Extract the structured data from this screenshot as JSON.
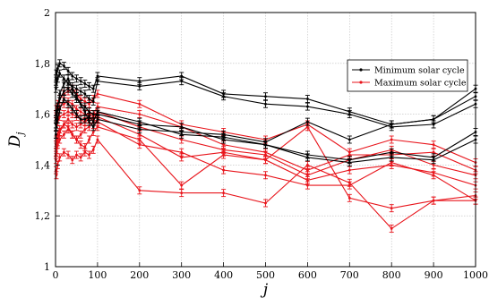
{
  "chart_data": {
    "type": "line",
    "xlabel": "j",
    "ylabel": "D",
    "ylabel_subscript": "j",
    "xlim": [
      0,
      1000
    ],
    "ylim": [
      1,
      2
    ],
    "x_ticks": [
      0,
      100,
      200,
      300,
      400,
      500,
      600,
      700,
      800,
      900,
      1000
    ],
    "y_ticks": [
      {
        "value": 1,
        "label": "1"
      },
      {
        "value": 1.2,
        "label": "1,2"
      },
      {
        "value": 1.4,
        "label": "1,4"
      },
      {
        "value": 1.6,
        "label": "1,6"
      },
      {
        "value": 1.8,
        "label": "1,8"
      },
      {
        "value": 2,
        "label": "2"
      }
    ],
    "legend_position": "top-right",
    "legend": [
      {
        "label": "Minimum solar cycle",
        "color": "#000000"
      },
      {
        "label": "Maximum solar cycle",
        "color": "#e8141b"
      }
    ],
    "x": [
      1,
      2,
      5,
      10,
      20,
      30,
      40,
      50,
      60,
      70,
      80,
      90,
      100,
      200,
      300,
      400,
      500,
      600,
      700,
      800,
      900,
      1000
    ],
    "series": [
      {
        "group": "Minimum solar cycle",
        "color": "#000000",
        "values": [
          1.74,
          1.76,
          1.78,
          1.8,
          1.79,
          1.77,
          1.75,
          1.74,
          1.73,
          1.72,
          1.71,
          1.7,
          1.75,
          1.73,
          1.75,
          1.68,
          1.67,
          1.66,
          1.61,
          1.56,
          1.58,
          1.67
        ]
      },
      {
        "group": "Minimum solar cycle",
        "color": "#000000",
        "values": [
          1.7,
          1.72,
          1.74,
          1.76,
          1.74,
          1.72,
          1.71,
          1.7,
          1.69,
          1.68,
          1.66,
          1.65,
          1.73,
          1.71,
          1.73,
          1.67,
          1.64,
          1.63,
          1.6,
          1.55,
          1.56,
          1.64
        ]
      },
      {
        "group": "Minimum solar cycle",
        "color": "#000000",
        "values": [
          1.56,
          1.58,
          1.62,
          1.68,
          1.72,
          1.74,
          1.7,
          1.67,
          1.64,
          1.61,
          1.57,
          1.55,
          1.58,
          1.54,
          1.53,
          1.52,
          1.49,
          1.57,
          1.5,
          1.56,
          1.58,
          1.7
        ]
      },
      {
        "group": "Minimum solar cycle",
        "color": "#000000",
        "values": [
          1.52,
          1.55,
          1.58,
          1.62,
          1.66,
          1.64,
          1.62,
          1.6,
          1.58,
          1.58,
          1.59,
          1.57,
          1.61,
          1.57,
          1.52,
          1.51,
          1.48,
          1.44,
          1.42,
          1.45,
          1.43,
          1.53
        ]
      },
      {
        "group": "Minimum solar cycle",
        "color": "#000000",
        "values": [
          1.58,
          1.6,
          1.63,
          1.66,
          1.69,
          1.7,
          1.68,
          1.66,
          1.64,
          1.63,
          1.61,
          1.6,
          1.6,
          1.56,
          1.55,
          1.5,
          1.48,
          1.43,
          1.41,
          1.43,
          1.42,
          1.5
        ]
      },
      {
        "group": "Maximum solar cycle",
        "color": "#e8141b",
        "values": [
          1.6,
          1.62,
          1.64,
          1.66,
          1.68,
          1.69,
          1.7,
          1.68,
          1.66,
          1.65,
          1.64,
          1.66,
          1.68,
          1.64,
          1.56,
          1.53,
          1.5,
          1.56,
          1.45,
          1.5,
          1.48,
          1.41
        ]
      },
      {
        "group": "Maximum solar cycle",
        "color": "#e8141b",
        "values": [
          1.58,
          1.6,
          1.62,
          1.63,
          1.64,
          1.65,
          1.64,
          1.62,
          1.61,
          1.6,
          1.6,
          1.6,
          1.63,
          1.6,
          1.55,
          1.48,
          1.45,
          1.38,
          1.44,
          1.44,
          1.45,
          1.38
        ]
      },
      {
        "group": "Maximum solar cycle",
        "color": "#e8141b",
        "values": [
          1.52,
          1.55,
          1.57,
          1.59,
          1.6,
          1.61,
          1.6,
          1.59,
          1.58,
          1.57,
          1.58,
          1.59,
          1.61,
          1.55,
          1.5,
          1.46,
          1.44,
          1.36,
          1.42,
          1.46,
          1.4,
          1.36
        ]
      },
      {
        "group": "Maximum solar cycle",
        "color": "#e8141b",
        "values": [
          1.48,
          1.5,
          1.52,
          1.54,
          1.56,
          1.58,
          1.56,
          1.55,
          1.56,
          1.57,
          1.59,
          1.58,
          1.59,
          1.52,
          1.43,
          1.45,
          1.42,
          1.34,
          1.38,
          1.4,
          1.37,
          1.32
        ]
      },
      {
        "group": "Maximum solar cycle",
        "color": "#e8141b",
        "values": [
          1.42,
          1.45,
          1.48,
          1.5,
          1.52,
          1.54,
          1.52,
          1.5,
          1.52,
          1.54,
          1.55,
          1.57,
          1.57,
          1.48,
          1.45,
          1.38,
          1.36,
          1.32,
          1.32,
          1.41,
          1.36,
          1.26
        ]
      },
      {
        "group": "Maximum solar cycle",
        "color": "#e8141b",
        "values": [
          1.44,
          1.46,
          1.49,
          1.53,
          1.56,
          1.55,
          1.52,
          1.5,
          1.48,
          1.47,
          1.5,
          1.53,
          1.55,
          1.5,
          1.32,
          1.44,
          1.42,
          1.55,
          1.27,
          1.23,
          1.26,
          1.28
        ]
      },
      {
        "group": "Maximum solar cycle",
        "color": "#e8141b",
        "values": [
          1.38,
          1.36,
          1.4,
          1.43,
          1.45,
          1.44,
          1.42,
          1.44,
          1.43,
          1.45,
          1.44,
          1.46,
          1.5,
          1.3,
          1.29,
          1.29,
          1.25,
          1.4,
          1.33,
          1.15,
          1.26,
          1.26
        ]
      }
    ]
  }
}
